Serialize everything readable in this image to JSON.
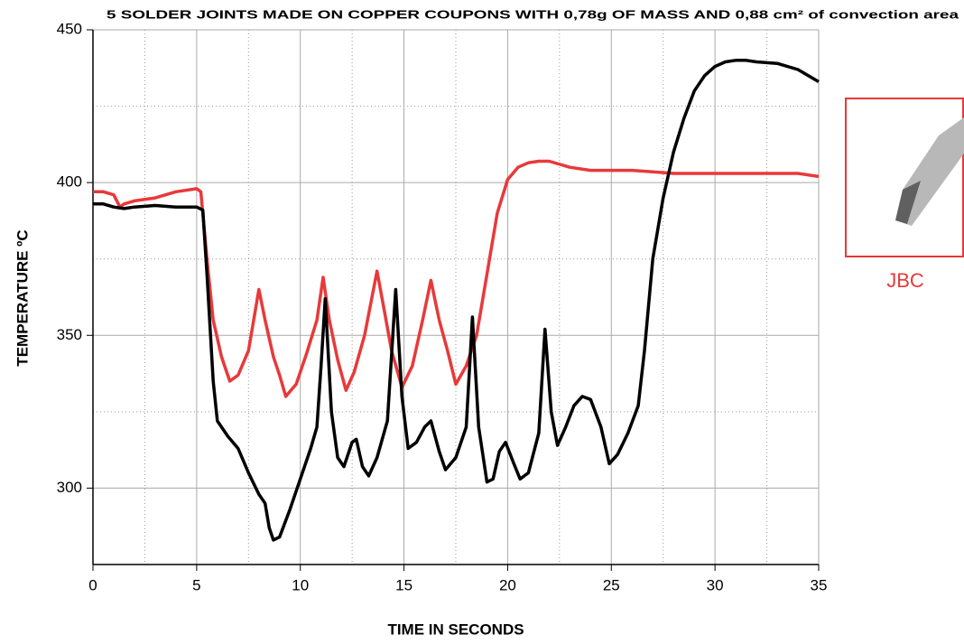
{
  "chart_data": {
    "type": "line",
    "title": "5 SOLDER JOINTS MADE ON COPPER COUPONS WITH 0,78g OF MASS AND 0,88 cm² of convection area",
    "x_label": "TIME IN SECONDS",
    "y_label": "TEMPERATURE ºC",
    "annotation": "JBC",
    "xlim": [
      0,
      35
    ],
    "xticks": [
      0,
      5,
      10,
      15,
      20,
      25,
      30,
      35
    ],
    "ylim": [
      275,
      450
    ],
    "yticks": [
      300,
      350,
      400,
      450
    ],
    "grid": true,
    "x_minor_grid": [
      2.5,
      7.5,
      12.5,
      17.5,
      22.5,
      27.5,
      32.5
    ],
    "y_minor_grid": [
      325,
      375,
      425
    ],
    "series": [
      {
        "color": "#e8393a",
        "x": [
          0,
          0.5,
          1,
          1.3,
          1.5,
          2,
          3,
          4,
          5,
          5.2,
          5.5,
          5.8,
          6.2,
          6.6,
          7,
          7.5,
          8,
          8.3,
          8.7,
          9,
          9.3,
          9.8,
          10.3,
          10.8,
          11.1,
          11.4,
          11.8,
          12.2,
          12.6,
          13.1,
          13.7,
          14,
          14.4,
          14.9,
          15.4,
          15.9,
          16.3,
          16.7,
          17.1,
          17.5,
          18,
          18.5,
          19,
          19.5,
          20,
          20.5,
          21,
          21.5,
          22,
          23,
          24,
          25,
          26,
          27,
          28,
          29,
          30,
          31,
          32,
          33,
          34,
          35
        ],
        "values": [
          397,
          397,
          396,
          392,
          393,
          394,
          395,
          397,
          398,
          397,
          375,
          355,
          343,
          335,
          337,
          345,
          365,
          355,
          343,
          337,
          330,
          334,
          344,
          355,
          369,
          355,
          342,
          332,
          338,
          350,
          371,
          360,
          345,
          333,
          340,
          355,
          368,
          355,
          345,
          334,
          340,
          350,
          370,
          390,
          401,
          405,
          406.5,
          407,
          407,
          405,
          404,
          404,
          404,
          403.5,
          403,
          403,
          403,
          403,
          403,
          403,
          403,
          402
        ]
      },
      {
        "color": "#000000",
        "x": [
          0,
          0.5,
          1,
          1.5,
          2,
          3,
          4,
          5,
          5.3,
          5.5,
          5.8,
          6,
          6.5,
          7,
          7.5,
          8,
          8.3,
          8.5,
          8.7,
          9,
          9.5,
          10,
          10.5,
          10.8,
          11,
          11.2,
          11.5,
          11.8,
          12.1,
          12.5,
          12.7,
          13,
          13.3,
          13.7,
          14.2,
          14.6,
          14.9,
          15.2,
          15.6,
          16,
          16.3,
          16.7,
          17,
          17.5,
          18,
          18.3,
          18.6,
          19,
          19.3,
          19.6,
          19.9,
          20.3,
          20.6,
          21,
          21.5,
          21.8,
          22.1,
          22.4,
          22.8,
          23.2,
          23.6,
          24,
          24.5,
          24.9,
          25.3,
          25.8,
          26.3,
          26.6,
          27,
          27.5,
          28,
          28.5,
          29,
          29.5,
          30,
          30.5,
          31,
          31.5,
          32,
          33,
          34,
          35
        ],
        "values": [
          393,
          393,
          392,
          391.5,
          392,
          392.5,
          392,
          392,
          391,
          370,
          335,
          322,
          317,
          313,
          305,
          298,
          295,
          287,
          283,
          284,
          293,
          303,
          313,
          320,
          340,
          362,
          325,
          310,
          307,
          315,
          316,
          307,
          304,
          310,
          322,
          365,
          330,
          313,
          315,
          320,
          322,
          312,
          306,
          310,
          320,
          356,
          320,
          302,
          303,
          312,
          315,
          308,
          303,
          305,
          318,
          352,
          325,
          314,
          320,
          327,
          330,
          329,
          320,
          308,
          311,
          318,
          327,
          345,
          375,
          395,
          410,
          421,
          430,
          435,
          438,
          439.5,
          440,
          440,
          439.5,
          439,
          437,
          433
        ]
      }
    ]
  }
}
